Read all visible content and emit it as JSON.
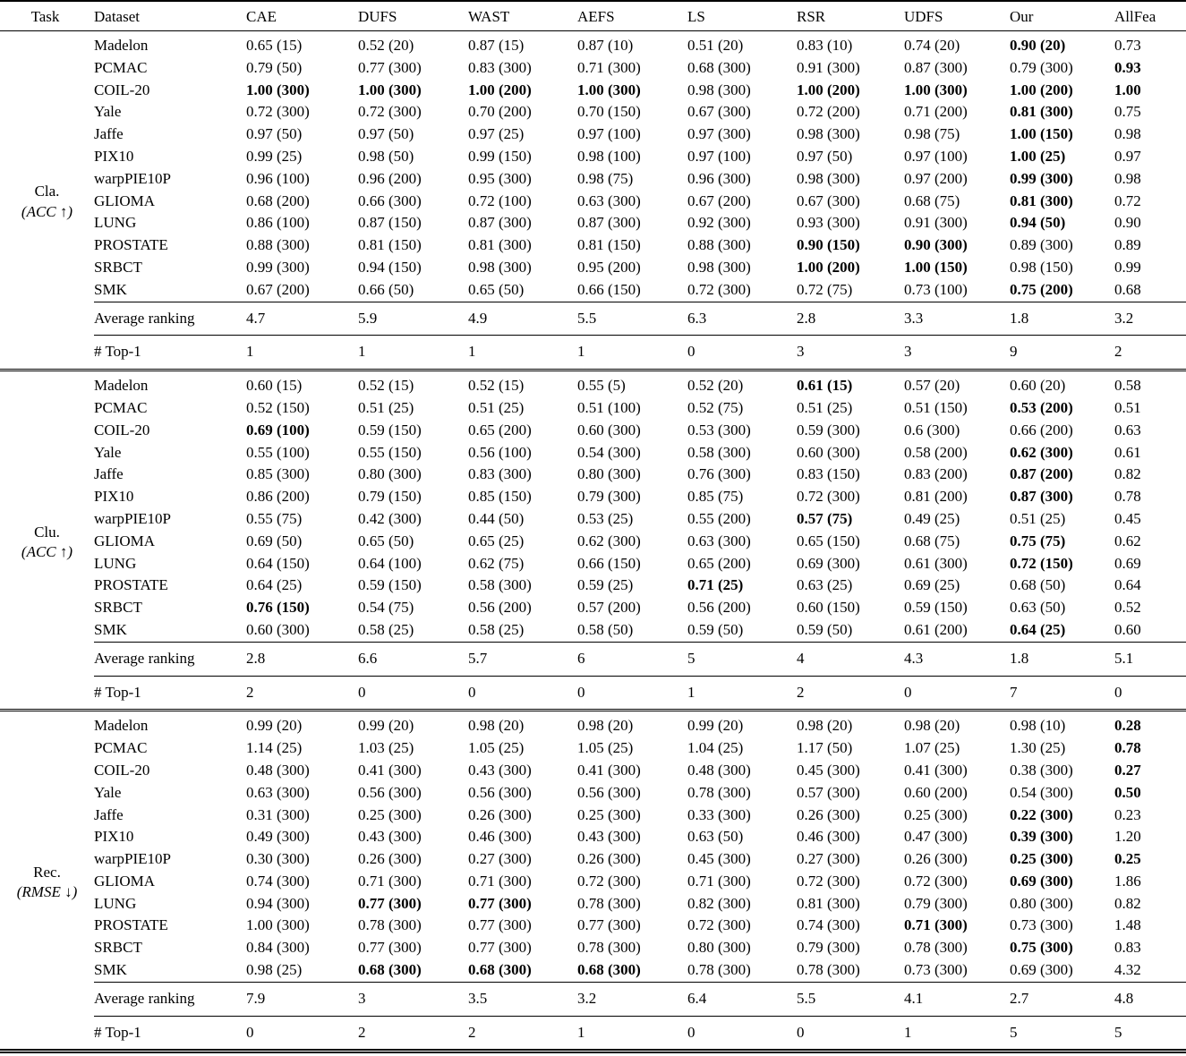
{
  "table": {
    "header": [
      "Task",
      "Dataset",
      "CAE",
      "DUFS",
      "WAST",
      "AEFS",
      "LS",
      "RSR",
      "UDFS",
      "Our",
      "AllFea"
    ],
    "sections": [
      {
        "task": {
          "name": "Cla.",
          "metric_label": "(ACC ↑)"
        },
        "rows": [
          {
            "dataset": "Madelon",
            "values": [
              "0.65 (15)",
              "0.52 (20)",
              "0.87 (15)",
              "0.87 (10)",
              "0.51 (20)",
              "0.83 (10)",
              "0.74 (20)",
              "0.90 (20)",
              "0.73"
            ],
            "bold": [
              7
            ]
          },
          {
            "dataset": "PCMAC",
            "values": [
              "0.79 (50)",
              "0.77 (300)",
              "0.83 (300)",
              "0.71 (300)",
              "0.68 (300)",
              "0.91 (300)",
              "0.87 (300)",
              "0.79 (300)",
              "0.93"
            ],
            "bold": [
              8
            ]
          },
          {
            "dataset": "COIL-20",
            "values": [
              "1.00 (300)",
              "1.00 (300)",
              "1.00 (200)",
              "1.00 (300)",
              "0.98 (300)",
              "1.00 (200)",
              "1.00 (300)",
              "1.00 (200)",
              "1.00"
            ],
            "bold": [
              0,
              1,
              2,
              3,
              5,
              6,
              7,
              8
            ]
          },
          {
            "dataset": "Yale",
            "values": [
              "0.72 (300)",
              "0.72 (300)",
              "0.70 (200)",
              "0.70 (150)",
              "0.67 (300)",
              "0.72 (200)",
              "0.71 (200)",
              "0.81 (300)",
              "0.75"
            ],
            "bold": [
              7
            ]
          },
          {
            "dataset": "Jaffe",
            "values": [
              "0.97 (50)",
              "0.97 (50)",
              "0.97 (25)",
              "0.97 (100)",
              "0.97 (300)",
              "0.98 (300)",
              "0.98 (75)",
              "1.00 (150)",
              "0.98"
            ],
            "bold": [
              7
            ]
          },
          {
            "dataset": "PIX10",
            "values": [
              "0.99 (25)",
              "0.98 (50)",
              "0.99 (150)",
              "0.98 (100)",
              "0.97 (100)",
              "0.97 (50)",
              "0.97 (100)",
              "1.00 (25)",
              "0.97"
            ],
            "bold": [
              7
            ]
          },
          {
            "dataset": "warpPIE10P",
            "values": [
              "0.96 (100)",
              "0.96 (200)",
              "0.95 (300)",
              "0.98 (75)",
              "0.96 (300)",
              "0.98 (300)",
              "0.97 (200)",
              "0.99 (300)",
              "0.98"
            ],
            "bold": [
              7
            ]
          },
          {
            "dataset": "GLIOMA",
            "values": [
              "0.68 (200)",
              "0.66 (300)",
              "0.72 (100)",
              "0.63 (300)",
              "0.67 (200)",
              "0.67 (300)",
              "0.68 (75)",
              "0.81 (300)",
              "0.72"
            ],
            "bold": [
              7
            ]
          },
          {
            "dataset": "LUNG",
            "values": [
              "0.86 (100)",
              "0.87 (150)",
              "0.87 (300)",
              "0.87 (300)",
              "0.92 (300)",
              "0.93 (300)",
              "0.91 (300)",
              "0.94 (50)",
              "0.90"
            ],
            "bold": [
              7
            ]
          },
          {
            "dataset": "PROSTATE",
            "values": [
              "0.88 (300)",
              "0.81 (150)",
              "0.81 (300)",
              "0.81 (150)",
              "0.88 (300)",
              "0.90 (150)",
              "0.90 (300)",
              "0.89 (300)",
              "0.89"
            ],
            "bold": [
              5,
              6
            ]
          },
          {
            "dataset": "SRBCT",
            "values": [
              "0.99 (300)",
              "0.94 (150)",
              "0.98 (300)",
              "0.95 (200)",
              "0.98 (300)",
              "1.00 (200)",
              "1.00 (150)",
              "0.98 (150)",
              "0.99"
            ],
            "bold": [
              5,
              6
            ]
          },
          {
            "dataset": "SMK",
            "values": [
              "0.67 (200)",
              "0.66 (50)",
              "0.65 (50)",
              "0.66 (150)",
              "0.72 (300)",
              "0.72 (75)",
              "0.73 (100)",
              "0.75 (200)",
              "0.68"
            ],
            "bold": [
              7
            ]
          }
        ],
        "summary": [
          {
            "label": "Average ranking",
            "values": [
              "4.7",
              "5.9",
              "4.9",
              "5.5",
              "6.3",
              "2.8",
              "3.3",
              "1.8",
              "3.2"
            ]
          },
          {
            "label": "# Top-1",
            "values": [
              "1",
              "1",
              "1",
              "1",
              "0",
              "3",
              "3",
              "9",
              "2"
            ]
          }
        ]
      },
      {
        "task": {
          "name": "Clu.",
          "metric_label": "(ACC ↑)"
        },
        "rows": [
          {
            "dataset": "Madelon",
            "values": [
              "0.60 (15)",
              "0.52 (15)",
              "0.52 (15)",
              "0.55 (5)",
              "0.52 (20)",
              "0.61 (15)",
              "0.57 (20)",
              "0.60 (20)",
              "0.58"
            ],
            "bold": [
              5
            ]
          },
          {
            "dataset": "PCMAC",
            "values": [
              "0.52 (150)",
              "0.51 (25)",
              "0.51 (25)",
              "0.51 (100)",
              "0.52 (75)",
              "0.51 (25)",
              "0.51 (150)",
              "0.53 (200)",
              "0.51"
            ],
            "bold": [
              7
            ]
          },
          {
            "dataset": "COIL-20",
            "values": [
              "0.69 (100)",
              "0.59 (150)",
              "0.65 (200)",
              "0.60 (300)",
              "0.53 (300)",
              "0.59 (300)",
              "0.6 (300)",
              "0.66 (200)",
              "0.63"
            ],
            "bold": [
              0
            ]
          },
          {
            "dataset": "Yale",
            "values": [
              "0.55 (100)",
              "0.55 (150)",
              "0.56 (100)",
              "0.54 (300)",
              "0.58 (300)",
              "0.60 (300)",
              "0.58 (200)",
              "0.62 (300)",
              "0.61"
            ],
            "bold": [
              7
            ]
          },
          {
            "dataset": "Jaffe",
            "values": [
              "0.85 (300)",
              "0.80 (300)",
              "0.83 (300)",
              "0.80 (300)",
              "0.76 (300)",
              "0.83 (150)",
              "0.83 (200)",
              "0.87 (200)",
              "0.82"
            ],
            "bold": [
              7
            ]
          },
          {
            "dataset": "PIX10",
            "values": [
              "0.86 (200)",
              "0.79 (150)",
              "0.85 (150)",
              "0.79 (300)",
              "0.85 (75)",
              "0.72 (300)",
              "0.81 (200)",
              "0.87 (300)",
              "0.78"
            ],
            "bold": [
              7
            ]
          },
          {
            "dataset": "warpPIE10P",
            "values": [
              "0.55 (75)",
              "0.42 (300)",
              "0.44 (50)",
              "0.53 (25)",
              "0.55 (200)",
              "0.57 (75)",
              "0.49 (25)",
              "0.51 (25)",
              "0.45"
            ],
            "bold": [
              5
            ]
          },
          {
            "dataset": "GLIOMA",
            "values": [
              "0.69 (50)",
              "0.65 (50)",
              "0.65 (25)",
              "0.62 (300)",
              "0.63 (300)",
              "0.65 (150)",
              "0.68 (75)",
              "0.75 (75)",
              "0.62"
            ],
            "bold": [
              7
            ]
          },
          {
            "dataset": "LUNG",
            "values": [
              "0.64 (150)",
              "0.64 (100)",
              "0.62 (75)",
              "0.66 (150)",
              "0.65 (200)",
              "0.69 (300)",
              "0.61 (300)",
              "0.72 (150)",
              "0.69"
            ],
            "bold": [
              7
            ]
          },
          {
            "dataset": "PROSTATE",
            "values": [
              "0.64 (25)",
              "0.59 (150)",
              "0.58 (300)",
              "0.59 (25)",
              "0.71 (25)",
              "0.63 (25)",
              "0.69 (25)",
              "0.68 (50)",
              "0.64"
            ],
            "bold": [
              4
            ]
          },
          {
            "dataset": "SRBCT",
            "values": [
              "0.76 (150)",
              "0.54 (75)",
              "0.56 (200)",
              "0.57 (200)",
              "0.56 (200)",
              "0.60 (150)",
              "0.59 (150)",
              "0.63 (50)",
              "0.52"
            ],
            "bold": [
              0
            ]
          },
          {
            "dataset": "SMK",
            "values": [
              "0.60 (300)",
              "0.58 (25)",
              "0.58 (25)",
              "0.58 (50)",
              "0.59 (50)",
              "0.59 (50)",
              "0.61 (200)",
              "0.64 (25)",
              "0.60"
            ],
            "bold": [
              7
            ]
          }
        ],
        "summary": [
          {
            "label": "Average ranking",
            "values": [
              "2.8",
              "6.6",
              "5.7",
              "6",
              "5",
              "4",
              "4.3",
              "1.8",
              "5.1"
            ]
          },
          {
            "label": "# Top-1",
            "values": [
              "2",
              "0",
              "0",
              "0",
              "1",
              "2",
              "0",
              "7",
              "0"
            ]
          }
        ]
      },
      {
        "task": {
          "name": "Rec.",
          "metric_label": "(RMSE ↓)"
        },
        "rows": [
          {
            "dataset": "Madelon",
            "values": [
              "0.99 (20)",
              "0.99 (20)",
              "0.98 (20)",
              "0.98 (20)",
              "0.99 (20)",
              "0.98 (20)",
              "0.98 (20)",
              "0.98 (10)",
              "0.28"
            ],
            "bold": [
              8
            ]
          },
          {
            "dataset": "PCMAC",
            "values": [
              "1.14 (25)",
              "1.03 (25)",
              "1.05 (25)",
              "1.05 (25)",
              "1.04 (25)",
              "1.17 (50)",
              "1.07 (25)",
              "1.30 (25)",
              "0.78"
            ],
            "bold": [
              8
            ]
          },
          {
            "dataset": "COIL-20",
            "values": [
              "0.48 (300)",
              "0.41 (300)",
              "0.43 (300)",
              "0.41 (300)",
              "0.48 (300)",
              "0.45 (300)",
              "0.41 (300)",
              "0.38 (300)",
              "0.27"
            ],
            "bold": [
              8
            ]
          },
          {
            "dataset": "Yale",
            "values": [
              "0.63 (300)",
              "0.56 (300)",
              "0.56 (300)",
              "0.56 (300)",
              "0.78 (300)",
              "0.57 (300)",
              "0.60 (200)",
              "0.54 (300)",
              "0.50"
            ],
            "bold": [
              8
            ]
          },
          {
            "dataset": "Jaffe",
            "values": [
              "0.31 (300)",
              "0.25 (300)",
              "0.26 (300)",
              "0.25 (300)",
              "0.33 (300)",
              "0.26 (300)",
              "0.25 (300)",
              "0.22 (300)",
              "0.23"
            ],
            "bold": [
              7
            ]
          },
          {
            "dataset": "PIX10",
            "values": [
              "0.49 (300)",
              "0.43 (300)",
              "0.46 (300)",
              "0.43 (300)",
              "0.63 (50)",
              "0.46 (300)",
              "0.47 (300)",
              "0.39 (300)",
              "1.20"
            ],
            "bold": [
              7
            ]
          },
          {
            "dataset": "warpPIE10P",
            "values": [
              "0.30 (300)",
              "0.26 (300)",
              "0.27 (300)",
              "0.26 (300)",
              "0.45 (300)",
              "0.27 (300)",
              "0.26 (300)",
              "0.25 (300)",
              "0.25"
            ],
            "bold": [
              7,
              8
            ]
          },
          {
            "dataset": "GLIOMA",
            "values": [
              "0.74 (300)",
              "0.71 (300)",
              "0.71 (300)",
              "0.72 (300)",
              "0.71 (300)",
              "0.72 (300)",
              "0.72 (300)",
              "0.69 (300)",
              "1.86"
            ],
            "bold": [
              7
            ]
          },
          {
            "dataset": "LUNG",
            "values": [
              "0.94 (300)",
              "0.77 (300)",
              "0.77 (300)",
              "0.78 (300)",
              "0.82 (300)",
              "0.81 (300)",
              "0.79 (300)",
              "0.80 (300)",
              "0.82"
            ],
            "bold": [
              1,
              2
            ]
          },
          {
            "dataset": "PROSTATE",
            "values": [
              "1.00 (300)",
              "0.78 (300)",
              "0.77 (300)",
              "0.77 (300)",
              "0.72 (300)",
              "0.74 (300)",
              "0.71 (300)",
              "0.73 (300)",
              "1.48"
            ],
            "bold": [
              6
            ]
          },
          {
            "dataset": "SRBCT",
            "values": [
              "0.84 (300)",
              "0.77 (300)",
              "0.77 (300)",
              "0.78 (300)",
              "0.80 (300)",
              "0.79 (300)",
              "0.78 (300)",
              "0.75 (300)",
              "0.83"
            ],
            "bold": [
              7
            ]
          },
          {
            "dataset": "SMK",
            "values": [
              "0.98 (25)",
              "0.68 (300)",
              "0.68 (300)",
              "0.68 (300)",
              "0.78 (300)",
              "0.78 (300)",
              "0.73 (300)",
              "0.69 (300)",
              "4.32"
            ],
            "bold": [
              1,
              2,
              3
            ]
          }
        ],
        "summary": [
          {
            "label": "Average ranking",
            "values": [
              "7.9",
              "3",
              "3.5",
              "3.2",
              "6.4",
              "5.5",
              "4.1",
              "2.7",
              "4.8"
            ]
          },
          {
            "label": "# Top-1",
            "values": [
              "0",
              "2",
              "2",
              "1",
              "0",
              "0",
              "1",
              "5",
              "5"
            ]
          }
        ]
      }
    ]
  }
}
